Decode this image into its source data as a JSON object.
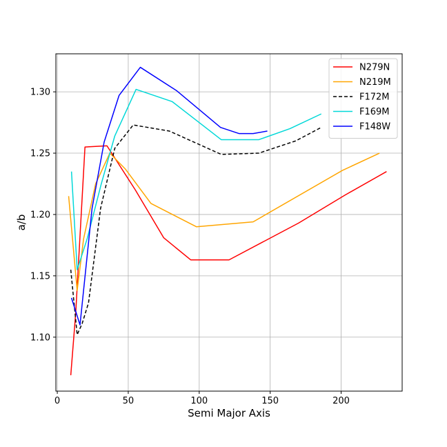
{
  "chart_data": {
    "type": "line",
    "title": "",
    "xlabel": "Semi Major Axis",
    "ylabel": "a/b",
    "xlim": [
      -1,
      243
    ],
    "ylim": [
      1.056,
      1.331
    ],
    "xticks": [
      0,
      50,
      100,
      150,
      200
    ],
    "yticks": [
      1.1,
      1.15,
      1.2,
      1.25,
      1.3
    ],
    "xtick_labels": [
      "0",
      "50",
      "100",
      "150",
      "200"
    ],
    "ytick_labels": [
      "1.10",
      "1.15",
      "1.20",
      "1.25",
      "1.30"
    ],
    "grid": true,
    "legend_position": "top-right",
    "series": [
      {
        "name": "N279N",
        "color": "#ff0000",
        "dashed": false,
        "x": [
          9.5,
          13,
          19.5,
          35,
          55,
          75,
          94,
          121,
          170,
          203,
          232
        ],
        "y": [
          1.069,
          1.12,
          1.255,
          1.256,
          1.22,
          1.181,
          1.163,
          1.163,
          1.193,
          1.216,
          1.235
        ]
      },
      {
        "name": "N219M",
        "color": "#ffa500",
        "dashed": false,
        "x": [
          8,
          14,
          18.5,
          27,
          37,
          48,
          66,
          98,
          138,
          201,
          227
        ],
        "y": [
          1.215,
          1.138,
          1.18,
          1.225,
          1.25,
          1.237,
          1.209,
          1.19,
          1.194,
          1.236,
          1.25
        ]
      },
      {
        "name": "F172M",
        "color": "#000000",
        "dashed": true,
        "x": [
          9.5,
          14,
          17.5,
          22,
          30.5,
          40.5,
          53.5,
          79,
          115.5,
          142,
          168,
          186
        ],
        "y": [
          1.155,
          1.102,
          1.111,
          1.128,
          1.205,
          1.254,
          1.273,
          1.268,
          1.249,
          1.25,
          1.26,
          1.271
        ]
      },
      {
        "name": "F169M",
        "color": "#00d8d8",
        "dashed": false,
        "x": [
          10,
          14,
          21,
          31,
          40.5,
          55.5,
          81,
          115.5,
          142,
          164,
          186
        ],
        "y": [
          1.235,
          1.155,
          1.18,
          1.225,
          1.264,
          1.302,
          1.292,
          1.261,
          1.261,
          1.27,
          1.282
        ]
      },
      {
        "name": "F148W",
        "color": "#0000ff",
        "dashed": false,
        "x": [
          10,
          16,
          24.5,
          33,
          43.5,
          58.5,
          84,
          115,
          128,
          138,
          148
        ],
        "y": [
          1.132,
          1.11,
          1.205,
          1.259,
          1.297,
          1.32,
          1.301,
          1.271,
          1.266,
          1.266,
          1.268
        ]
      }
    ]
  }
}
